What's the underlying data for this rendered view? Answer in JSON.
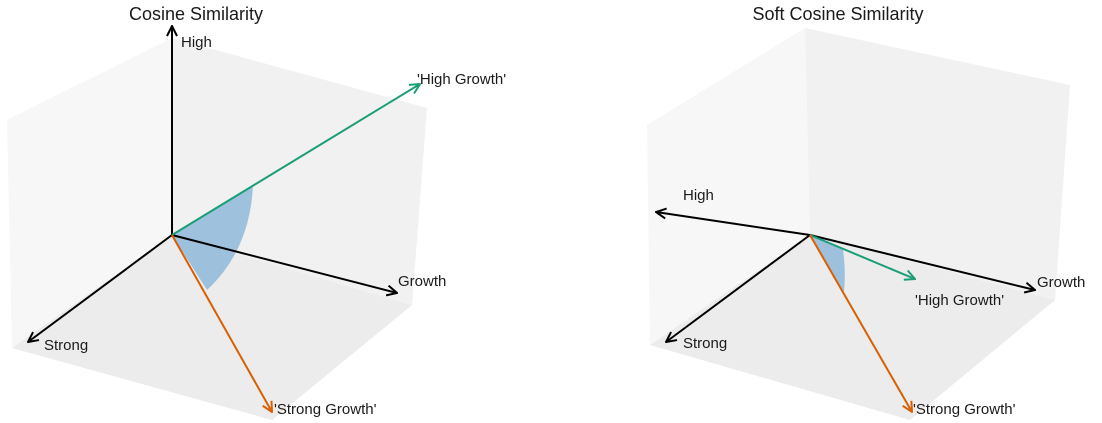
{
  "colors": {
    "axis": "#000000",
    "high_growth_vector": "#1b9e77",
    "strong_growth_vector": "#d95f02",
    "angle_fill": "#8fb9d9",
    "cube_face_light": "#f7f7f7",
    "cube_face_mid": "#f1f1f1",
    "cube_face_dark": "#ececec"
  },
  "panels": [
    {
      "title": "Cosine Similarity",
      "axes": {
        "high": "High",
        "growth": "Growth",
        "strong": "Strong"
      },
      "vectors": {
        "high_growth": "'High Growth'",
        "strong_growth": "'Strong Growth'"
      }
    },
    {
      "title": "Soft Cosine Similarity",
      "axes": {
        "high": "High",
        "growth": "Growth",
        "strong": "Strong"
      },
      "vectors": {
        "high_growth": "'High Growth'",
        "strong_growth": "'Strong Growth'"
      }
    }
  ]
}
